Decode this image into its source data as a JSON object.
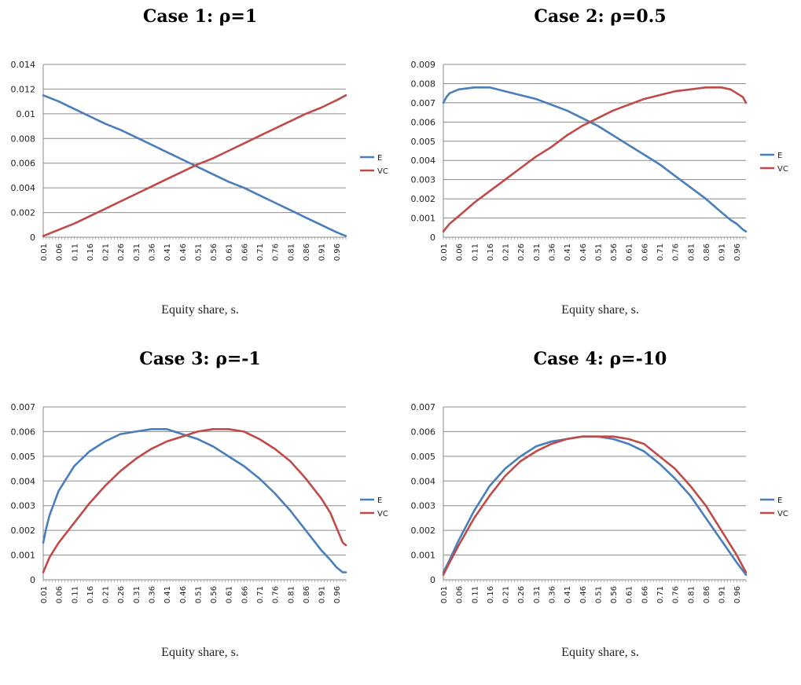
{
  "chart_data": [
    {
      "type": "line",
      "title": "Case 1: ρ=1",
      "xlabel": "Equity share, s.",
      "ylim": [
        0,
        0.014
      ],
      "yticks": [
        "0",
        "0.002",
        "0.004",
        "0.006",
        "0.008",
        "0.01",
        "0.012",
        "0.014"
      ],
      "xticks": [
        "0.01",
        "0.06",
        "0.11",
        "0.16",
        "0.21",
        "0.26",
        "0.31",
        "0.36",
        "0.41",
        "0.46",
        "0.51",
        "0.56",
        "0.61",
        "0.66",
        "0.71",
        "0.76",
        "0.81",
        "0.86",
        "0.91",
        "0.96"
      ],
      "grid": true,
      "legend": "right",
      "x": [
        0.01,
        0.06,
        0.11,
        0.16,
        0.21,
        0.26,
        0.31,
        0.36,
        0.41,
        0.46,
        0.51,
        0.56,
        0.61,
        0.66,
        0.71,
        0.76,
        0.81,
        0.86,
        0.91,
        0.96,
        0.99
      ],
      "series": [
        {
          "name": "E",
          "color": "#4a7ebb",
          "values": [
            0.0115,
            0.011,
            0.0104,
            0.0098,
            0.0092,
            0.0087,
            0.0081,
            0.0075,
            0.0069,
            0.0063,
            0.0057,
            0.0051,
            0.0045,
            0.004,
            0.0034,
            0.0028,
            0.0022,
            0.0016,
            0.001,
            0.0004,
            0.0001
          ]
        },
        {
          "name": "VC",
          "color": "#be4b48",
          "values": [
            0.0001,
            0.0006,
            0.0011,
            0.0017,
            0.0023,
            0.0029,
            0.0035,
            0.0041,
            0.0047,
            0.0053,
            0.0059,
            0.0064,
            0.007,
            0.0076,
            0.0082,
            0.0088,
            0.0094,
            0.01,
            0.0105,
            0.0111,
            0.0115
          ]
        }
      ]
    },
    {
      "type": "line",
      "title": "Case 2: ρ=0.5",
      "xlabel": "Equity share, s.",
      "ylim": [
        0,
        0.009
      ],
      "yticks": [
        "0",
        "0.001",
        "0.002",
        "0.003",
        "0.004",
        "0.005",
        "0.006",
        "0.007",
        "0.008",
        "0.009"
      ],
      "xticks": [
        "0.01",
        "0.06",
        "0.11",
        "0.16",
        "0.21",
        "0.26",
        "0.31",
        "0.36",
        "0.41",
        "0.46",
        "0.51",
        "0.56",
        "0.61",
        "0.66",
        "0.71",
        "0.76",
        "0.81",
        "0.86",
        "0.91",
        "0.96"
      ],
      "grid": true,
      "legend": "right",
      "x": [
        0.01,
        0.02,
        0.03,
        0.06,
        0.11,
        0.16,
        0.21,
        0.26,
        0.31,
        0.36,
        0.41,
        0.46,
        0.51,
        0.56,
        0.61,
        0.66,
        0.71,
        0.76,
        0.81,
        0.86,
        0.91,
        0.94,
        0.96,
        0.98,
        0.99
      ],
      "series": [
        {
          "name": "E",
          "color": "#4a7ebb",
          "values": [
            0.007,
            0.0073,
            0.0075,
            0.0077,
            0.0078,
            0.0078,
            0.0076,
            0.0074,
            0.0072,
            0.0069,
            0.0066,
            0.0062,
            0.0058,
            0.0053,
            0.0048,
            0.0043,
            0.0038,
            0.0032,
            0.0026,
            0.002,
            0.0013,
            0.0009,
            0.0007,
            0.0004,
            0.0003
          ]
        },
        {
          "name": "VC",
          "color": "#be4b48",
          "values": [
            0.0003,
            0.0005,
            0.0007,
            0.0011,
            0.0018,
            0.0024,
            0.003,
            0.0036,
            0.0042,
            0.0047,
            0.0053,
            0.0058,
            0.0062,
            0.0066,
            0.0069,
            0.0072,
            0.0074,
            0.0076,
            0.0077,
            0.0078,
            0.0078,
            0.0077,
            0.0075,
            0.0073,
            0.007
          ]
        }
      ]
    },
    {
      "type": "line",
      "title": "Case 3: ρ=-1",
      "xlabel": "Equity share, s.",
      "ylim": [
        0,
        0.007
      ],
      "yticks": [
        "0",
        "0.001",
        "0.002",
        "0.003",
        "0.004",
        "0.005",
        "0.006",
        "0.007"
      ],
      "xticks": [
        "0.01",
        "0.06",
        "0.11",
        "0.16",
        "0.21",
        "0.26",
        "0.31",
        "0.36",
        "0.41",
        "0.46",
        "0.51",
        "0.56",
        "0.61",
        "0.66",
        "0.71",
        "0.76",
        "0.81",
        "0.86",
        "0.91",
        "0.96"
      ],
      "grid": true,
      "legend": "right",
      "x": [
        0.01,
        0.02,
        0.03,
        0.06,
        0.11,
        0.16,
        0.21,
        0.26,
        0.31,
        0.36,
        0.41,
        0.46,
        0.51,
        0.56,
        0.61,
        0.66,
        0.71,
        0.76,
        0.81,
        0.86,
        0.91,
        0.94,
        0.96,
        0.98,
        0.99
      ],
      "series": [
        {
          "name": "E",
          "color": "#4a7ebb",
          "values": [
            0.0015,
            0.0021,
            0.0026,
            0.0036,
            0.0046,
            0.0052,
            0.0056,
            0.0059,
            0.006,
            0.0061,
            0.0061,
            0.0059,
            0.0057,
            0.0054,
            0.005,
            0.0046,
            0.0041,
            0.0035,
            0.0028,
            0.002,
            0.0012,
            0.0008,
            0.0005,
            0.0003,
            0.0003
          ]
        },
        {
          "name": "VC",
          "color": "#be4b48",
          "values": [
            0.0003,
            0.0006,
            0.0009,
            0.0015,
            0.0023,
            0.0031,
            0.0038,
            0.0044,
            0.0049,
            0.0053,
            0.0056,
            0.0058,
            0.006,
            0.0061,
            0.0061,
            0.006,
            0.0057,
            0.0053,
            0.0048,
            0.0041,
            0.0033,
            0.0027,
            0.0021,
            0.0015,
            0.0014
          ]
        }
      ]
    },
    {
      "type": "line",
      "title": "Case 4: ρ=-10",
      "xlabel": "Equity share, s.",
      "ylim": [
        0,
        0.007
      ],
      "yticks": [
        "0",
        "0.001",
        "0.002",
        "0.003",
        "0.004",
        "0.005",
        "0.006",
        "0.007"
      ],
      "xticks": [
        "0.01",
        "0.06",
        "0.11",
        "0.16",
        "0.21",
        "0.26",
        "0.31",
        "0.36",
        "0.41",
        "0.46",
        "0.51",
        "0.56",
        "0.61",
        "0.66",
        "0.71",
        "0.76",
        "0.81",
        "0.86",
        "0.91",
        "0.96"
      ],
      "grid": true,
      "legend": "right",
      "x": [
        0.01,
        0.03,
        0.06,
        0.11,
        0.16,
        0.21,
        0.26,
        0.31,
        0.36,
        0.41,
        0.46,
        0.51,
        0.56,
        0.61,
        0.66,
        0.71,
        0.76,
        0.81,
        0.86,
        0.91,
        0.96,
        0.99
      ],
      "series": [
        {
          "name": "E",
          "color": "#4a7ebb",
          "values": [
            0.0003,
            0.0008,
            0.0016,
            0.0028,
            0.0038,
            0.0045,
            0.005,
            0.0054,
            0.0056,
            0.0057,
            0.0058,
            0.0058,
            0.0057,
            0.0055,
            0.0052,
            0.0047,
            0.0041,
            0.0034,
            0.0025,
            0.0016,
            0.0007,
            0.0002
          ]
        },
        {
          "name": "VC",
          "color": "#be4b48",
          "values": [
            0.0002,
            0.0007,
            0.0014,
            0.0025,
            0.0034,
            0.0042,
            0.0048,
            0.0052,
            0.0055,
            0.0057,
            0.0058,
            0.0058,
            0.0058,
            0.0057,
            0.0055,
            0.005,
            0.0045,
            0.0038,
            0.003,
            0.002,
            0.001,
            0.0003
          ]
        }
      ]
    }
  ]
}
